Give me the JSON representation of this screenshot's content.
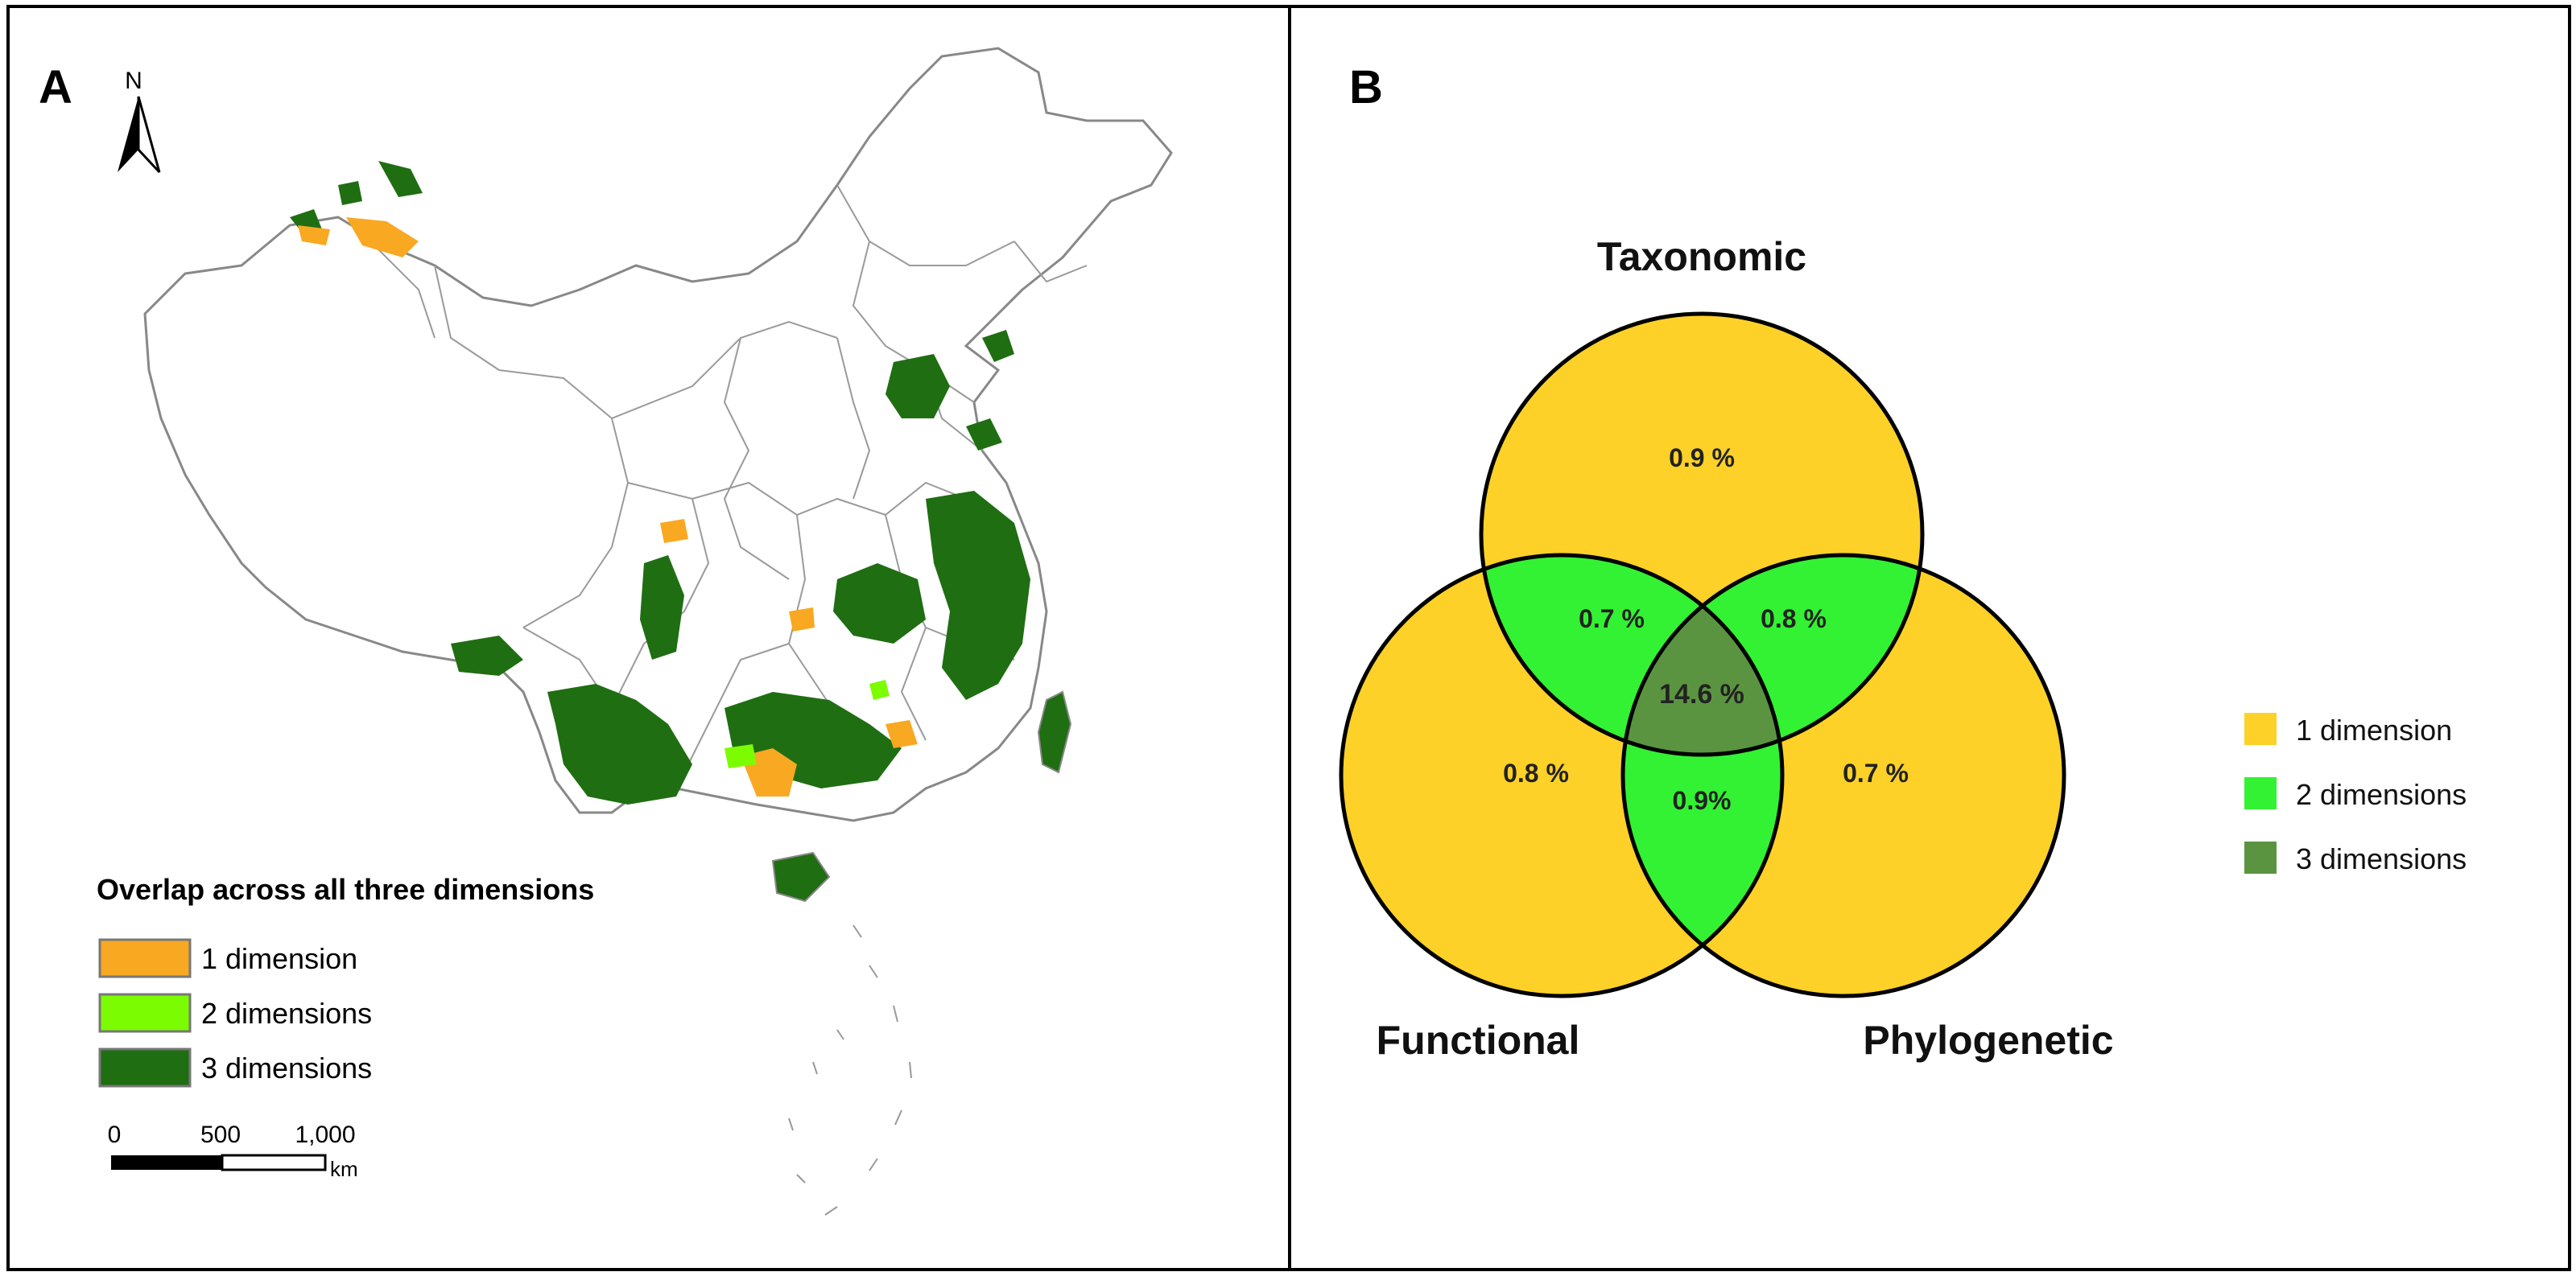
{
  "panel_a": {
    "label": "A",
    "north_label": "N",
    "legend": {
      "title": "Overlap across all three dimensions",
      "items": [
        {
          "label": "1 dimension",
          "color": "#F9A822"
        },
        {
          "label": "2 dimensions",
          "color": "#7CFC00"
        },
        {
          "label": "3 dimensions",
          "color": "#1F6E12"
        }
      ]
    },
    "scalebar": {
      "ticks": [
        "0",
        "500",
        "1,000"
      ],
      "unit": "km"
    }
  },
  "panel_b": {
    "label": "B",
    "circles": {
      "top": "Taxonomic",
      "left": "Functional",
      "right": "Phylogenetic"
    },
    "regions": {
      "taxonomic_only": "0.9 %",
      "functional_only": "0.8 %",
      "phylogenetic_only": "0.7 %",
      "taxonomic_functional": "0.7 %",
      "taxonomic_phylogenetic": "0.8 %",
      "functional_phylogenetic": "0.9%",
      "all_three": "14.6 %"
    },
    "colors": {
      "one": "#FDD128",
      "two": "#33F233",
      "three": "#5B9440"
    },
    "legend": [
      {
        "label": "1 dimension",
        "color": "#FDD128"
      },
      {
        "label": "2 dimensions",
        "color": "#33F233"
      },
      {
        "label": "3 dimensions",
        "color": "#5B9440"
      }
    ]
  }
}
